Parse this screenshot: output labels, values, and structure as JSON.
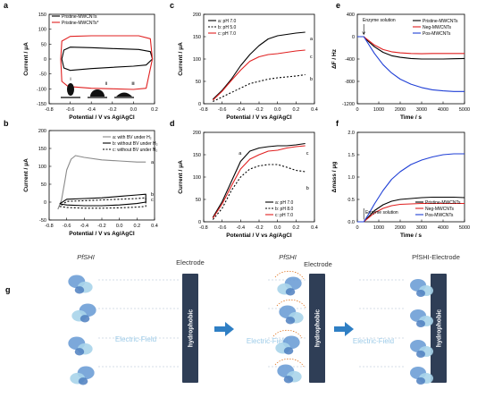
{
  "panel_letters": {
    "a": "a",
    "b": "b",
    "c": "c",
    "d": "d",
    "e": "e",
    "f": "f",
    "g": "g"
  },
  "chart_data": [
    {
      "id": "a",
      "type": "line",
      "xlabel": "Potential / V vs Ag/AgCl",
      "ylabel": "Current / μA",
      "xlim": [
        -0.8,
        0.2
      ],
      "ylim": [
        -150,
        150
      ],
      "xticks": [
        "-0.8",
        "-0.6",
        "-0.4",
        "-0.2",
        "0.0",
        "0.2"
      ],
      "yticks": [
        "-150",
        "-100",
        "-50",
        "0",
        "50",
        "100",
        "150"
      ],
      "legend": [
        "Pristine-MWCNTs",
        "Pristine-MWCNTs*"
      ],
      "legend_position": "top-left",
      "droplet_labels": [
        "ⅰ",
        "ⅱ",
        "ⅲ"
      ],
      "series": [
        {
          "name": "Pristine-MWCNTs",
          "color": "#000000",
          "x": [
            -0.68,
            -0.66,
            -0.6,
            -0.4,
            -0.2,
            0.0,
            0.12,
            0.18,
            0.16,
            0.05,
            -0.2,
            -0.4,
            -0.6,
            -0.66,
            -0.68
          ],
          "y": [
            0,
            -30,
            -38,
            -32,
            -28,
            -24,
            -20,
            0,
            25,
            32,
            35,
            38,
            40,
            30,
            0
          ]
        },
        {
          "name": "Pristine-MWCNTs*",
          "color": "#e02020",
          "x": [
            -0.69,
            -0.68,
            -0.62,
            -0.4,
            -0.2,
            0.0,
            0.12,
            0.18,
            0.16,
            0.05,
            -0.2,
            -0.4,
            -0.6,
            -0.68,
            -0.69
          ],
          "y": [
            0,
            -75,
            -92,
            -98,
            -100,
            -102,
            -98,
            0,
            68,
            78,
            78,
            78,
            76,
            60,
            0
          ]
        }
      ]
    },
    {
      "id": "b",
      "type": "line",
      "xlabel": "Potential / V vs Ag/AgCl",
      "ylabel": "Current / μA",
      "xlim": [
        -0.8,
        0.4
      ],
      "ylim": [
        -50,
        200
      ],
      "xticks": [
        "-0.8",
        "-0.6",
        "-0.4",
        "-0.2",
        "0.0",
        "0.2",
        "0.4"
      ],
      "yticks": [
        "-50",
        "0",
        "50",
        "100",
        "150",
        "200"
      ],
      "legend": [
        "a: with BV under H₂",
        "b: without BV under H₂",
        "c: without BV under N₂"
      ],
      "legend_position": "top-right",
      "curve_labels": [
        "a",
        "b",
        "c"
      ],
      "series": [
        {
          "name": "a: with BV under H₂",
          "color": "#8a8a8a",
          "x": [
            -0.7,
            -0.66,
            -0.62,
            -0.6,
            -0.55,
            -0.5,
            -0.4,
            -0.2,
            0.0,
            0.2,
            0.3
          ],
          "y": [
            -20,
            5,
            60,
            90,
            120,
            130,
            125,
            118,
            115,
            112,
            112
          ]
        },
        {
          "name": "b: without BV under H₂",
          "color": "#000000",
          "x": [
            -0.68,
            -0.6,
            -0.4,
            -0.2,
            0.0,
            0.2,
            0.3,
            0.3,
            0.2,
            0.0,
            -0.2,
            -0.4,
            -0.6,
            -0.68
          ],
          "y": [
            -5,
            -8,
            -10,
            -10,
            -8,
            -4,
            0,
            22,
            20,
            16,
            12,
            10,
            8,
            -5
          ]
        },
        {
          "name": "c: without BV under N₂",
          "color": "#000000",
          "x": [
            -0.68,
            -0.6,
            -0.4,
            -0.2,
            0.0,
            0.2,
            0.3,
            0.3,
            0.2,
            0.0,
            -0.2,
            -0.4,
            -0.6,
            -0.68
          ],
          "y": [
            -12,
            -15,
            -17,
            -17,
            -16,
            -14,
            -12,
            12,
            10,
            8,
            6,
            4,
            2,
            -12
          ]
        }
      ]
    },
    {
      "id": "c",
      "type": "line",
      "xlabel": "Potential / V vs Ag/AgCl",
      "ylabel": "Current / μA",
      "xlim": [
        -0.8,
        0.4
      ],
      "ylim": [
        0,
        200
      ],
      "xticks": [
        "-0.8",
        "-0.6",
        "-0.4",
        "-0.2",
        "0.0",
        "0.2",
        "0.4"
      ],
      "yticks": [
        "0",
        "50",
        "100",
        "150",
        "200"
      ],
      "legend": [
        "a: pH 7.0",
        "b: pH 5.0",
        "c: pH 7.0"
      ],
      "legend_position": "top-left",
      "curve_labels": [
        "a",
        "b",
        "c"
      ],
      "series": [
        {
          "name": "a: pH 7.0",
          "color": "#000000",
          "x": [
            -0.7,
            -0.6,
            -0.5,
            -0.4,
            -0.3,
            -0.2,
            -0.1,
            0.0,
            0.1,
            0.2,
            0.3
          ],
          "y": [
            10,
            30,
            55,
            85,
            110,
            130,
            145,
            152,
            155,
            158,
            160
          ]
        },
        {
          "name": "b: pH 5.0",
          "color": "#000000",
          "x": [
            -0.7,
            -0.6,
            -0.5,
            -0.4,
            -0.3,
            -0.2,
            -0.1,
            0.0,
            0.1,
            0.2,
            0.3
          ],
          "y": [
            5,
            15,
            25,
            35,
            45,
            50,
            55,
            58,
            60,
            62,
            65
          ]
        },
        {
          "name": "c: pH 7.0",
          "color": "#e02020",
          "x": [
            -0.7,
            -0.6,
            -0.5,
            -0.4,
            -0.3,
            -0.2,
            -0.1,
            0.0,
            0.1,
            0.2,
            0.3
          ],
          "y": [
            8,
            28,
            52,
            75,
            95,
            105,
            110,
            112,
            115,
            118,
            120
          ]
        }
      ]
    },
    {
      "id": "d",
      "type": "line",
      "xlabel": "Potential / V vs Ag/AgCl",
      "ylabel": "Current / μA",
      "xlim": [
        -0.8,
        0.4
      ],
      "ylim": [
        0,
        200
      ],
      "xticks": [
        "-0.8",
        "-0.6",
        "-0.4",
        "-0.2",
        "0.0",
        "0.2",
        "0.4"
      ],
      "yticks": [
        "0",
        "50",
        "100",
        "150",
        "200"
      ],
      "legend": [
        "a: pH 7.0",
        "b: pH 8.0",
        "c: pH 7.0"
      ],
      "legend_position": "bottom-right",
      "curve_labels": [
        "a",
        "b",
        "c"
      ],
      "series": [
        {
          "name": "a: pH 7.0",
          "color": "#000000",
          "x": [
            -0.7,
            -0.6,
            -0.5,
            -0.4,
            -0.3,
            -0.2,
            -0.1,
            0.0,
            0.1,
            0.2,
            0.3
          ],
          "y": [
            10,
            45,
            90,
            135,
            158,
            165,
            168,
            170,
            170,
            172,
            175
          ]
        },
        {
          "name": "b: pH 8.0",
          "color": "#000000",
          "x": [
            -0.7,
            -0.6,
            -0.5,
            -0.4,
            -0.3,
            -0.2,
            -0.1,
            0.0,
            0.1,
            0.2,
            0.3
          ],
          "y": [
            5,
            30,
            70,
            100,
            118,
            125,
            128,
            128,
            122,
            115,
            112
          ]
        },
        {
          "name": "c: pH 7.0",
          "color": "#e02020",
          "x": [
            -0.7,
            -0.6,
            -0.5,
            -0.4,
            -0.3,
            -0.2,
            -0.1,
            0.0,
            0.1,
            0.2,
            0.3
          ],
          "y": [
            8,
            40,
            80,
            118,
            140,
            150,
            158,
            160,
            165,
            168,
            170
          ]
        }
      ]
    },
    {
      "id": "e",
      "type": "line",
      "xlabel": "Time / s",
      "ylabel": "ΔF / Hz",
      "xlim": [
        0,
        5000
      ],
      "ylim": [
        -1200,
        400
      ],
      "xticks": [
        "0",
        "1000",
        "2000",
        "3000",
        "4000",
        "5000"
      ],
      "yticks": [
        "-1200",
        "-800",
        "-400",
        "0",
        "400"
      ],
      "legend": [
        "Pristine-MWCNTs",
        "Neg-MWCNTs",
        "Pos-MWCNTs"
      ],
      "legend_position": "top-right",
      "annotation": "Enzyme solution",
      "series": [
        {
          "name": "Pristine-MWCNTs",
          "color": "#000000",
          "x": [
            0,
            300,
            500,
            800,
            1200,
            1600,
            2000,
            2500,
            3000,
            3500,
            4000,
            4500,
            5000
          ],
          "y": [
            0,
            0,
            -80,
            -180,
            -280,
            -340,
            -370,
            -390,
            -400,
            -400,
            -400,
            -395,
            -390
          ]
        },
        {
          "name": "Neg-MWCNTs",
          "color": "#e02020",
          "x": [
            0,
            300,
            500,
            800,
            1200,
            1600,
            2000,
            2500,
            3000,
            3500,
            4000,
            4500,
            5000
          ],
          "y": [
            0,
            0,
            -60,
            -150,
            -230,
            -270,
            -290,
            -300,
            -305,
            -300,
            -300,
            -300,
            -300
          ]
        },
        {
          "name": "Pos-MWCNTs",
          "color": "#1f3fd6",
          "x": [
            0,
            300,
            500,
            800,
            1200,
            1600,
            2000,
            2500,
            3000,
            3500,
            4000,
            4500,
            5000
          ],
          "y": [
            0,
            0,
            -120,
            -300,
            -500,
            -650,
            -760,
            -850,
            -910,
            -950,
            -970,
            -980,
            -980
          ]
        }
      ]
    },
    {
      "id": "f",
      "type": "line",
      "xlabel": "Time / s",
      "ylabel": "Δmass / μg",
      "xlim": [
        0,
        5000
      ],
      "ylim": [
        0,
        2.0
      ],
      "xticks": [
        "0",
        "1000",
        "2000",
        "3000",
        "4000",
        "5000"
      ],
      "yticks": [
        "0.0",
        "0.5",
        "1.0",
        "1.5",
        "2.0"
      ],
      "legend": [
        "Pristine-MWCNTs",
        "Neg-MWCNTs",
        "Pos-MWCNTs"
      ],
      "legend_position": "bottom-right",
      "annotation": "Enzyme solution",
      "series": [
        {
          "name": "Pristine-MWCNTs",
          "color": "#000000",
          "x": [
            0,
            300,
            500,
            800,
            1200,
            1600,
            2000,
            2500,
            3000,
            3500,
            4000,
            4500,
            5000
          ],
          "y": [
            0,
            0,
            0.1,
            0.25,
            0.38,
            0.46,
            0.5,
            0.52,
            0.54,
            0.55,
            0.55,
            0.55,
            0.54
          ]
        },
        {
          "name": "Neg-MWCNTs",
          "color": "#e02020",
          "x": [
            0,
            300,
            500,
            800,
            1200,
            1600,
            2000,
            2500,
            3000,
            3500,
            4000,
            4500,
            5000
          ],
          "y": [
            0,
            0,
            0.08,
            0.2,
            0.3,
            0.36,
            0.39,
            0.4,
            0.41,
            0.41,
            0.41,
            0.41,
            0.41
          ]
        },
        {
          "name": "Pos-MWCNTs",
          "color": "#1f3fd6",
          "x": [
            0,
            300,
            500,
            800,
            1200,
            1600,
            2000,
            2500,
            3000,
            3500,
            4000,
            4500,
            5000
          ],
          "y": [
            0,
            0,
            0.15,
            0.4,
            0.7,
            0.95,
            1.12,
            1.28,
            1.38,
            1.45,
            1.5,
            1.52,
            1.52
          ]
        }
      ]
    }
  ],
  "schematic_g": {
    "headers": [
      "PfSHI",
      "Electrode",
      "PfSHI",
      "Electrode",
      "PfSHI-Electrode"
    ],
    "electrode_label": "hydrophobic",
    "field_label": "Electric-Field",
    "colors": {
      "electrode": "#2f3e56",
      "arrow": "#2f7fc4",
      "field_text": "#9ccbe8",
      "protein": "#6e9fd6",
      "protein_light": "#a9d4ea"
    }
  }
}
